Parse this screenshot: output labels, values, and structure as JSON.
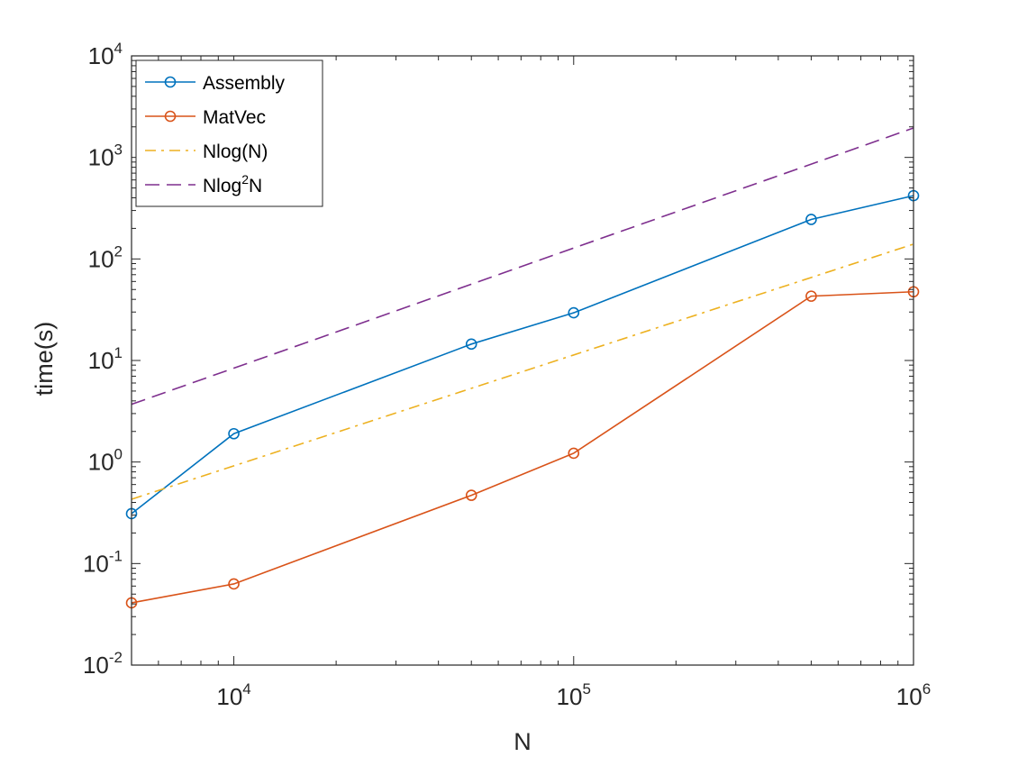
{
  "chart_data": {
    "type": "line",
    "xscale": "log",
    "yscale": "log",
    "xlim": [
      5000,
      1000000
    ],
    "ylim": [
      0.01,
      10000
    ],
    "xlabel": "N",
    "ylabel": "time(s)",
    "x_ticks": [
      {
        "base": "10",
        "exp": "4",
        "value": 10000
      },
      {
        "base": "10",
        "exp": "5",
        "value": 100000
      },
      {
        "base": "10",
        "exp": "6",
        "value": 1000000
      }
    ],
    "y_ticks": [
      {
        "base": "10",
        "exp": "-2",
        "value": 0.01
      },
      {
        "base": "10",
        "exp": "-1",
        "value": 0.1
      },
      {
        "base": "10",
        "exp": "0",
        "value": 1
      },
      {
        "base": "10",
        "exp": "1",
        "value": 10
      },
      {
        "base": "10",
        "exp": "2",
        "value": 100
      },
      {
        "base": "10",
        "exp": "3",
        "value": 1000
      },
      {
        "base": "10",
        "exp": "4",
        "value": 10000
      }
    ],
    "grid": false,
    "legend_position": "top-left",
    "series": [
      {
        "name": "Assembly",
        "color": "#0072BD",
        "style": "solid",
        "marker": "circle",
        "x": [
          5000,
          10000,
          50000,
          100000,
          500000,
          1000000
        ],
        "y": [
          0.31,
          1.9,
          14.5,
          29.5,
          245,
          420
        ]
      },
      {
        "name": "MatVec",
        "color": "#D95319",
        "style": "solid",
        "marker": "circle",
        "x": [
          5000,
          10000,
          50000,
          100000,
          500000,
          1000000
        ],
        "y": [
          0.041,
          0.063,
          0.47,
          1.22,
          43,
          47.5
        ]
      },
      {
        "name": "Nlog(N)",
        "color": "#EDB120",
        "style": "dashdot",
        "marker": "none",
        "x": [
          5000,
          1000000
        ],
        "y": [
          0.43,
          140
        ]
      },
      {
        "name": "Nlog2N",
        "legend_base": "Nlog",
        "legend_sup": "2",
        "legend_tail": "N",
        "color": "#7E2F8E",
        "style": "dashed",
        "marker": "none",
        "x": [
          5000,
          1000000
        ],
        "y": [
          3.7,
          1950
        ]
      }
    ]
  }
}
